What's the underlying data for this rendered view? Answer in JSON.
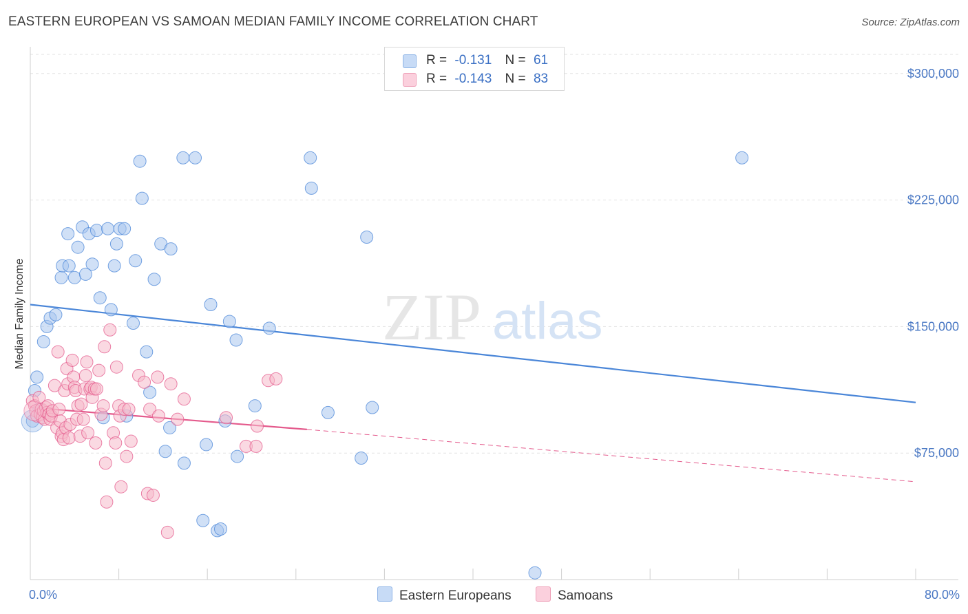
{
  "title": "EASTERN EUROPEAN VS SAMOAN MEDIAN FAMILY INCOME CORRELATION CHART",
  "source": "Source: ZipAtlas.com",
  "watermark": {
    "zip": "ZIP",
    "atlas": "atlas"
  },
  "legend": {
    "rows": [
      {
        "r_label": "R =",
        "r_value": "-0.131",
        "n_label": "N =",
        "n_value": "61",
        "color": "#a9c6ee"
      },
      {
        "r_label": "R =",
        "r_value": "-0.143",
        "n_label": "N =",
        "n_value": "83",
        "color": "#f6b9cb"
      }
    ]
  },
  "bottom_legend": {
    "eastern": "Eastern Europeans",
    "samoan": "Samoans"
  },
  "chart_data": {
    "type": "scatter",
    "title": "EASTERN EUROPEAN VS SAMOAN MEDIAN FAMILY INCOME CORRELATION CHART",
    "xlabel": "",
    "ylabel": "Median Family Income",
    "xlim": [
      0,
      80
    ],
    "ylim": [
      0,
      315000
    ],
    "x_tick_labels": {
      "min": "0.0%",
      "max": "80.0%"
    },
    "y_ticks": [
      {
        "value": 75000,
        "label": "$75,000"
      },
      {
        "value": 150000,
        "label": "$150,000"
      },
      {
        "value": 225000,
        "label": "$225,000"
      },
      {
        "value": 300000,
        "label": "$300,000"
      }
    ],
    "grid": true,
    "series": [
      {
        "name": "Eastern Europeans",
        "color": "#4a86d8",
        "fill": "#a9c6ee",
        "trend": {
          "x": [
            0,
            80
          ],
          "y": [
            163000,
            105000
          ],
          "dashed_from": null
        },
        "points": [
          [
            0.4,
            112000
          ],
          [
            0.6,
            120000
          ],
          [
            1.2,
            141000
          ],
          [
            1.5,
            150000
          ],
          [
            1.8,
            155000
          ],
          [
            2.3,
            157000
          ],
          [
            2.8,
            179000
          ],
          [
            2.9,
            186000
          ],
          [
            3.4,
            205000
          ],
          [
            3.5,
            186000
          ],
          [
            4.0,
            179000
          ],
          [
            4.3,
            197000
          ],
          [
            4.7,
            209000
          ],
          [
            5.0,
            181000
          ],
          [
            5.3,
            205000
          ],
          [
            5.6,
            187000
          ],
          [
            6.0,
            207000
          ],
          [
            6.3,
            167000
          ],
          [
            6.6,
            96000
          ],
          [
            7.0,
            208000
          ],
          [
            7.3,
            160000
          ],
          [
            7.6,
            186000
          ],
          [
            7.8,
            199000
          ],
          [
            8.1,
            208000
          ],
          [
            8.5,
            208000
          ],
          [
            8.7,
            97000
          ],
          [
            9.3,
            152000
          ],
          [
            9.5,
            189000
          ],
          [
            9.9,
            248000
          ],
          [
            10.1,
            226000
          ],
          [
            10.5,
            135000
          ],
          [
            10.8,
            111000
          ],
          [
            11.2,
            178000
          ],
          [
            11.8,
            199000
          ],
          [
            12.2,
            76000
          ],
          [
            12.6,
            90000
          ],
          [
            12.7,
            196000
          ],
          [
            13.9,
            69000
          ],
          [
            13.8,
            250000
          ],
          [
            14.9,
            250000
          ],
          [
            15.6,
            35000
          ],
          [
            15.9,
            80000
          ],
          [
            16.3,
            163000
          ],
          [
            16.9,
            29000
          ],
          [
            17.2,
            30000
          ],
          [
            17.6,
            94000
          ],
          [
            18.0,
            153000
          ],
          [
            18.6,
            142000
          ],
          [
            18.7,
            73000
          ],
          [
            20.3,
            103000
          ],
          [
            21.6,
            149000
          ],
          [
            25.3,
            250000
          ],
          [
            25.4,
            232000
          ],
          [
            26.9,
            99000
          ],
          [
            29.9,
            72000
          ],
          [
            30.4,
            203000
          ],
          [
            30.9,
            102000
          ],
          [
            45.6,
            4000
          ],
          [
            64.3,
            250000
          ],
          [
            0.2,
            94000
          ],
          [
            0.8,
            101000
          ]
        ]
      },
      {
        "name": "Samoans",
        "color": "#e45a8c",
        "fill": "#f6b9cb",
        "trend": {
          "x": [
            0,
            25,
            80
          ],
          "y": [
            102000,
            89000,
            58000
          ],
          "dashed_from": 25
        },
        "points": [
          [
            0.2,
            106000
          ],
          [
            0.4,
            103000
          ],
          [
            0.5,
            100000
          ],
          [
            0.6,
            97000
          ],
          [
            0.8,
            108000
          ],
          [
            0.9,
            98000
          ],
          [
            1.0,
            101000
          ],
          [
            1.1,
            96000
          ],
          [
            1.2,
            100000
          ],
          [
            1.3,
            95000
          ],
          [
            1.4,
            102000
          ],
          [
            1.5,
            99000
          ],
          [
            1.6,
            103000
          ],
          [
            1.7,
            98000
          ],
          [
            1.8,
            95000
          ],
          [
            1.9,
            97000
          ],
          [
            2.0,
            100000
          ],
          [
            2.2,
            115000
          ],
          [
            2.4,
            90000
          ],
          [
            2.6,
            101000
          ],
          [
            2.5,
            135000
          ],
          [
            2.7,
            94000
          ],
          [
            2.8,
            85000
          ],
          [
            2.9,
            87000
          ],
          [
            3.0,
            83000
          ],
          [
            3.2,
            90000
          ],
          [
            3.1,
            112000
          ],
          [
            3.3,
            125000
          ],
          [
            3.4,
            116000
          ],
          [
            3.5,
            84000
          ],
          [
            3.6,
            92000
          ],
          [
            3.8,
            130000
          ],
          [
            3.9,
            120000
          ],
          [
            4.0,
            114000
          ],
          [
            4.1,
            112000
          ],
          [
            4.2,
            95000
          ],
          [
            4.3,
            103000
          ],
          [
            4.5,
            85000
          ],
          [
            4.6,
            104000
          ],
          [
            4.8,
            95000
          ],
          [
            4.9,
            113000
          ],
          [
            5.0,
            121000
          ],
          [
            5.1,
            129000
          ],
          [
            5.2,
            87000
          ],
          [
            5.4,
            113000
          ],
          [
            5.5,
            114000
          ],
          [
            5.6,
            108000
          ],
          [
            5.8,
            113000
          ],
          [
            5.9,
            81000
          ],
          [
            6.0,
            113000
          ],
          [
            6.2,
            124000
          ],
          [
            6.4,
            98000
          ],
          [
            6.6,
            103000
          ],
          [
            6.7,
            138000
          ],
          [
            6.8,
            69000
          ],
          [
            6.9,
            46000
          ],
          [
            7.2,
            148000
          ],
          [
            7.5,
            87000
          ],
          [
            7.7,
            81000
          ],
          [
            7.8,
            126000
          ],
          [
            8.0,
            103000
          ],
          [
            8.1,
            97000
          ],
          [
            8.2,
            55000
          ],
          [
            8.5,
            101000
          ],
          [
            8.7,
            73000
          ],
          [
            8.9,
            101000
          ],
          [
            9.1,
            82000
          ],
          [
            9.8,
            121000
          ],
          [
            10.3,
            117000
          ],
          [
            10.6,
            51000
          ],
          [
            10.8,
            101000
          ],
          [
            11.1,
            50000
          ],
          [
            11.5,
            120000
          ],
          [
            11.6,
            97000
          ],
          [
            12.4,
            28000
          ],
          [
            12.7,
            116000
          ],
          [
            13.3,
            95000
          ],
          [
            13.9,
            107000
          ],
          [
            17.7,
            96000
          ],
          [
            19.5,
            79000
          ],
          [
            20.4,
            79000
          ],
          [
            20.5,
            91000
          ],
          [
            21.5,
            118000
          ],
          [
            22.2,
            119000
          ]
        ]
      }
    ]
  }
}
